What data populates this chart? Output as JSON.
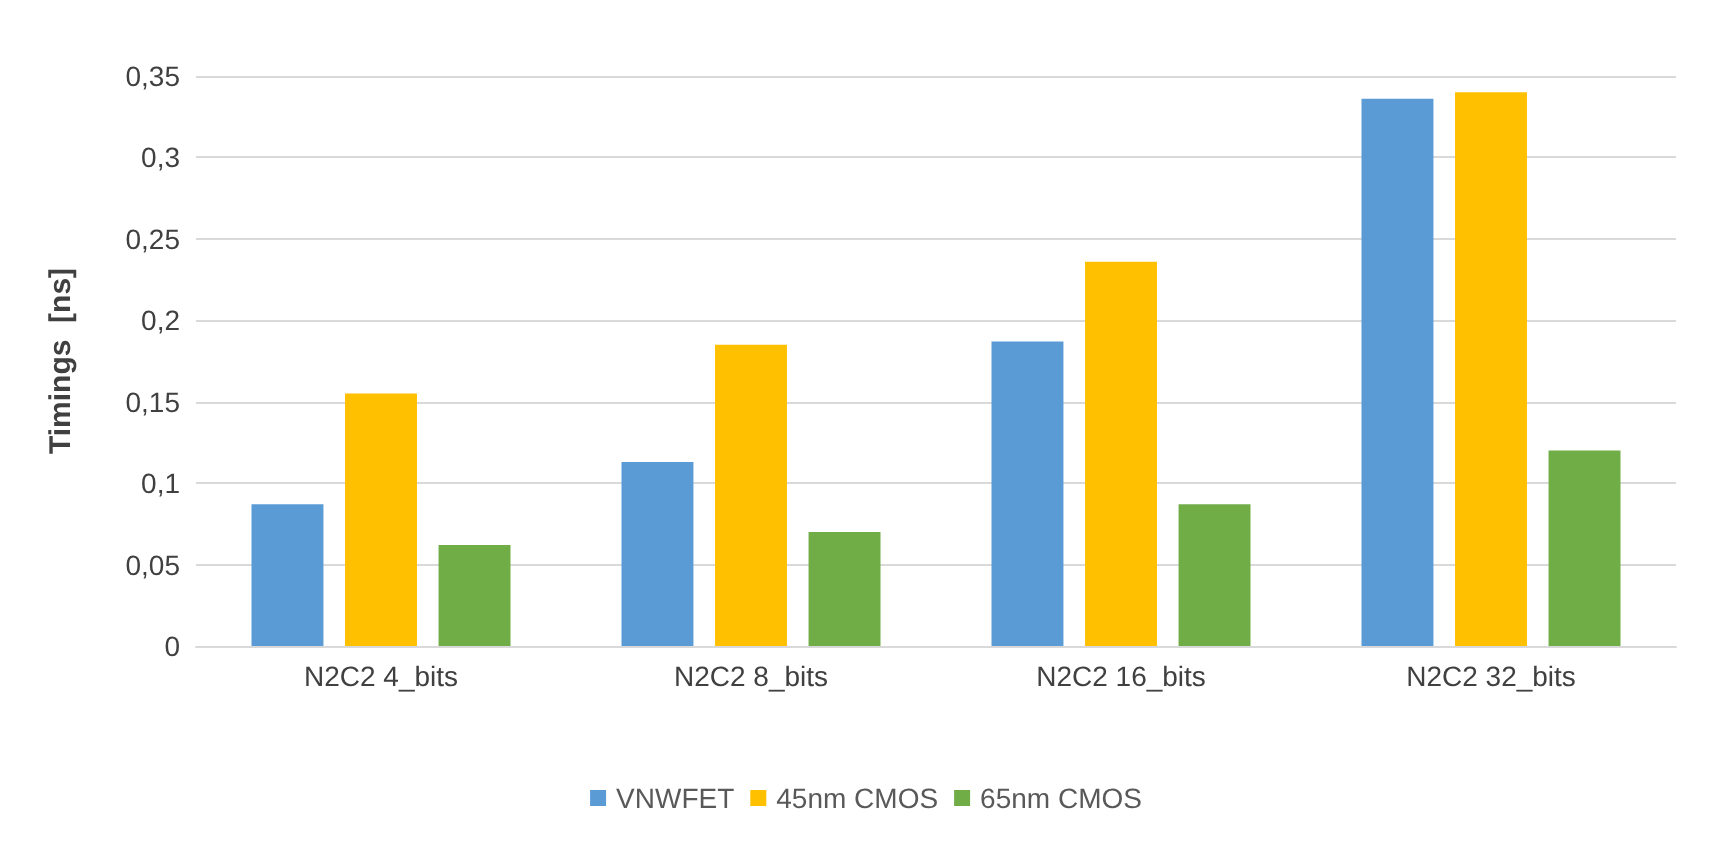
{
  "chart_data": {
    "type": "bar",
    "ylabel": "Timings  [ns]",
    "categories": [
      "N2C2 4_bits",
      "N2C2 8_bits",
      "N2C2 16_bits",
      "N2C2 32_bits"
    ],
    "series": [
      {
        "name": "VNWFET",
        "color": "#5b9bd5",
        "values": [
          0.087,
          0.113,
          0.187,
          0.336
        ]
      },
      {
        "name": "45nm CMOS",
        "color": "#ffc000",
        "values": [
          0.155,
          0.185,
          0.236,
          0.34
        ]
      },
      {
        "name": "65nm CMOS",
        "color": "#70ad47",
        "values": [
          0.062,
          0.07,
          0.087,
          0.12
        ]
      }
    ],
    "ylim": [
      0,
      0.35
    ],
    "yticks": [
      0,
      {
        "value": 0.05,
        "label": "0,05"
      },
      {
        "value": 0.1,
        "label": "0,1"
      },
      {
        "value": 0.15,
        "label": "0,15"
      },
      {
        "value": 0.2,
        "label": "0,2"
      },
      {
        "value": 0.25,
        "label": "0,25"
      },
      {
        "value": 0.3,
        "label": "0,3"
      },
      {
        "value": 0.35,
        "label": "0,35"
      }
    ],
    "grid": true,
    "legend": "bottom"
  }
}
